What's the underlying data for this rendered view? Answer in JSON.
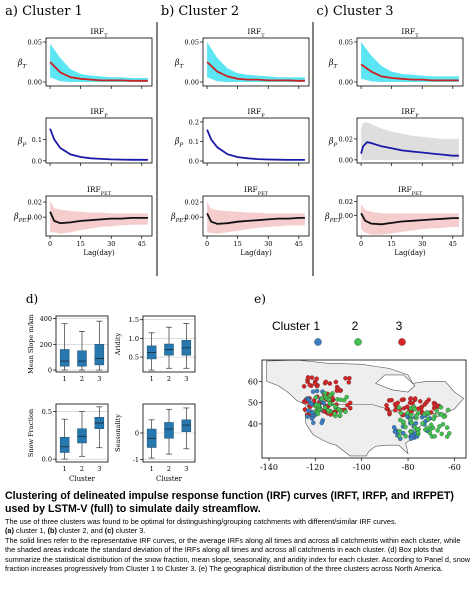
{
  "figure": {
    "panel_labels": {
      "a": "a) Cluster 1",
      "b": "b) Cluster 2",
      "c": "c) Cluster 3",
      "d": "d)",
      "e": "e)"
    },
    "irf_titles": [
      "IRF",
      "IRF",
      "IRF"
    ],
    "irf_subs": [
      "T",
      "P",
      "PET"
    ],
    "beta_symbol": "β",
    "beta_subs": [
      "T",
      "P",
      "PET"
    ],
    "irf_xlabel": "Lag(day)"
  },
  "chart_data": [
    {
      "type": "line",
      "panel": "a",
      "title": "IRF_T",
      "ylabel": "β_T",
      "x": [
        0,
        5,
        10,
        15,
        20,
        25,
        30,
        35,
        40,
        45,
        48
      ],
      "mean": [
        0.025,
        0.012,
        0.006,
        0.004,
        0.003,
        0.002,
        0.002,
        0.002,
        0.0015,
        0.0015,
        0.0015
      ],
      "band_upper": [
        0.048,
        0.03,
        0.016,
        0.01,
        0.008,
        0.007,
        0.006,
        0.006,
        0.005,
        0.005,
        0.005
      ],
      "band_lower": [
        0.006,
        0.001,
        0,
        0,
        0,
        0,
        0,
        0,
        0,
        0,
        0
      ],
      "yticks": [
        0.0,
        0.05
      ],
      "ylim": [
        -0.005,
        0.055
      ],
      "xticks": [
        0,
        15,
        30,
        45
      ],
      "color": "#cc2222",
      "band_color": "#40e0f0"
    },
    {
      "type": "line",
      "panel": "a",
      "title": "IRF_P",
      "ylabel": "β_P",
      "x": [
        0,
        2,
        5,
        10,
        15,
        20,
        25,
        30,
        35,
        40,
        45,
        48
      ],
      "mean": [
        0.15,
        0.1,
        0.06,
        0.03,
        0.018,
        0.012,
        0.009,
        0.007,
        0.006,
        0.005,
        0.005,
        0.005
      ],
      "yticks": [
        0.0,
        0.1
      ],
      "ylim": [
        -0.01,
        0.2
      ],
      "xticks": [
        0,
        15,
        30,
        45
      ],
      "color": "#1a1aaa"
    },
    {
      "type": "line",
      "panel": "a",
      "title": "IRF_PET",
      "ylabel": "β_PET",
      "x": [
        0,
        2,
        5,
        10,
        15,
        20,
        25,
        30,
        35,
        40,
        45,
        48
      ],
      "mean": [
        0.007,
        -0.005,
        -0.008,
        -0.007,
        -0.005,
        -0.004,
        -0.003,
        -0.002,
        -0.002,
        -0.001,
        -0.001,
        -0.001
      ],
      "band_upper": [
        0.022,
        0.012,
        0.01,
        0.008,
        0.007,
        0.006,
        0.006,
        0.005,
        0.005,
        0.005,
        0.005,
        0.005
      ],
      "band_lower": [
        -0.02,
        -0.02,
        -0.022,
        -0.02,
        -0.017,
        -0.015,
        -0.013,
        -0.012,
        -0.011,
        -0.01,
        -0.01,
        -0.01
      ],
      "yticks": [
        0.0,
        0.02
      ],
      "ylim": [
        -0.025,
        0.028
      ],
      "xticks": [
        0,
        15,
        30,
        45
      ],
      "color": "#111111",
      "band_color": "#f4c4c4"
    },
    {
      "type": "line",
      "panel": "b",
      "title": "IRF_T",
      "ylabel": "β_T",
      "x": [
        0,
        5,
        10,
        15,
        20,
        25,
        30,
        35,
        40,
        45,
        48
      ],
      "mean": [
        0.025,
        0.013,
        0.007,
        0.004,
        0.003,
        0.003,
        0.002,
        0.002,
        0.002,
        0.0015,
        0.0015
      ],
      "band_upper": [
        0.05,
        0.03,
        0.017,
        0.011,
        0.009,
        0.008,
        0.007,
        0.006,
        0.006,
        0.006,
        0.006
      ],
      "band_lower": [
        0.006,
        0.001,
        0,
        0,
        0,
        0,
        0,
        0,
        0,
        0,
        0
      ],
      "yticks": [
        0.0,
        0.05
      ],
      "ylim": [
        -0.005,
        0.055
      ],
      "xticks": [
        0,
        15,
        30,
        45
      ],
      "color": "#cc2222",
      "band_color": "#40e0f0"
    },
    {
      "type": "line",
      "panel": "b",
      "title": "IRF_P",
      "ylabel": "β_P",
      "x": [
        0,
        2,
        5,
        10,
        15,
        20,
        25,
        30,
        35,
        40,
        45,
        48
      ],
      "mean": [
        0.16,
        0.11,
        0.07,
        0.035,
        0.02,
        0.014,
        0.01,
        0.008,
        0.007,
        0.006,
        0.006,
        0.006
      ],
      "yticks": [
        0.0,
        0.1,
        0.2
      ],
      "ylim": [
        -0.01,
        0.22
      ],
      "xticks": [
        0,
        15,
        30,
        45
      ],
      "color": "#1a1aaa"
    },
    {
      "type": "line",
      "panel": "b",
      "title": "IRF_PET",
      "ylabel": "β_PET",
      "x": [
        0,
        2,
        5,
        10,
        15,
        20,
        25,
        30,
        35,
        40,
        45,
        48
      ],
      "mean": [
        0.005,
        -0.006,
        -0.009,
        -0.008,
        -0.006,
        -0.005,
        -0.004,
        -0.003,
        -0.002,
        -0.002,
        -0.001,
        -0.001
      ],
      "band_upper": [
        0.02,
        0.011,
        0.009,
        0.008,
        0.007,
        0.006,
        0.006,
        0.005,
        0.005,
        0.005,
        0.005,
        0.005
      ],
      "band_lower": [
        -0.02,
        -0.021,
        -0.022,
        -0.02,
        -0.018,
        -0.016,
        -0.014,
        -0.013,
        -0.012,
        -0.011,
        -0.011,
        -0.011
      ],
      "yticks": [
        0.0,
        0.02
      ],
      "ylim": [
        -0.025,
        0.028
      ],
      "xticks": [
        0,
        15,
        30,
        45
      ],
      "color": "#111111",
      "band_color": "#f4c4c4"
    },
    {
      "type": "line",
      "panel": "c",
      "title": "IRF_T",
      "ylabel": "β_T",
      "x": [
        0,
        5,
        10,
        15,
        20,
        25,
        30,
        35,
        40,
        45,
        48
      ],
      "mean": [
        0.022,
        0.013,
        0.007,
        0.005,
        0.004,
        0.003,
        0.003,
        0.002,
        0.002,
        0.002,
        0.002
      ],
      "band_upper": [
        0.05,
        0.033,
        0.02,
        0.013,
        0.01,
        0.009,
        0.008,
        0.007,
        0.007,
        0.007,
        0.007
      ],
      "band_lower": [
        0.004,
        0.001,
        0,
        0,
        0,
        0,
        0,
        0,
        0,
        0,
        0
      ],
      "yticks": [
        0.0,
        0.05
      ],
      "ylim": [
        -0.005,
        0.055
      ],
      "xticks": [
        0,
        15,
        30,
        45
      ],
      "color": "#cc2222",
      "band_color": "#40e0f0"
    },
    {
      "type": "line",
      "panel": "c",
      "title": "IRF_P",
      "ylabel": "β_P",
      "x": [
        0,
        1,
        3,
        5,
        10,
        15,
        20,
        25,
        30,
        35,
        40,
        45,
        48
      ],
      "mean": [
        0.006,
        0.013,
        0.017,
        0.016,
        0.013,
        0.011,
        0.009,
        0.008,
        0.007,
        0.006,
        0.005,
        0.004,
        0.004
      ],
      "band_upper": [
        0.03,
        0.035,
        0.036,
        0.034,
        0.03,
        0.027,
        0.025,
        0.023,
        0.022,
        0.021,
        0.02,
        0.02,
        0.02
      ],
      "band_lower": [
        0,
        0,
        0,
        0,
        0,
        0,
        0,
        0,
        0,
        0,
        0,
        0,
        0
      ],
      "yticks": [
        0.0,
        0.02
      ],
      "ylim": [
        -0.003,
        0.04
      ],
      "xticks": [
        0,
        15,
        30,
        45
      ],
      "color": "#1a1aaa",
      "band_color": "#d8d8d8"
    },
    {
      "type": "line",
      "panel": "c",
      "title": "IRF_PET",
      "ylabel": "β_PET",
      "x": [
        0,
        2,
        5,
        10,
        15,
        20,
        25,
        30,
        35,
        40,
        45,
        48
      ],
      "mean": [
        0.003,
        -0.008,
        -0.012,
        -0.013,
        -0.011,
        -0.009,
        -0.008,
        -0.007,
        -0.006,
        -0.005,
        -0.004,
        -0.004
      ],
      "band_upper": [
        0.016,
        0.008,
        0.005,
        0.003,
        0.003,
        0.003,
        0.003,
        0.003,
        0.003,
        0.003,
        0.003,
        0.003
      ],
      "band_lower": [
        -0.02,
        -0.025,
        -0.028,
        -0.028,
        -0.026,
        -0.024,
        -0.022,
        -0.02,
        -0.019,
        -0.018,
        -0.017,
        -0.017
      ],
      "yticks": [
        0.0,
        0.02
      ],
      "ylim": [
        -0.03,
        0.028
      ],
      "xticks": [
        0,
        15,
        30,
        45
      ],
      "color": "#111111",
      "band_color": "#f4c4c4"
    },
    {
      "type": "box",
      "panel": "d",
      "ylabel": "Mean Slope m/km",
      "xlabel": "",
      "categories": [
        "1",
        "2",
        "3"
      ],
      "boxes": [
        {
          "whislo": 0,
          "q1": 30,
          "med": 70,
          "q3": 160,
          "whishi": 360
        },
        {
          "whislo": 0,
          "q1": 30,
          "med": 70,
          "q3": 150,
          "whishi": 300
        },
        {
          "whislo": 0,
          "q1": 40,
          "med": 90,
          "q3": 200,
          "whishi": 380
        }
      ],
      "yticks": [
        0,
        200,
        400
      ],
      "ylim": [
        -15,
        420
      ],
      "color": "#2878b0"
    },
    {
      "type": "box",
      "panel": "d",
      "ylabel": "Aridity",
      "xlabel": "",
      "categories": [
        "1",
        "2",
        "3"
      ],
      "boxes": [
        {
          "whislo": 0.15,
          "q1": 0.45,
          "med": 0.62,
          "q3": 0.8,
          "whishi": 1.15
        },
        {
          "whislo": 0.2,
          "q1": 0.55,
          "med": 0.7,
          "q3": 0.85,
          "whishi": 1.3
        },
        {
          "whislo": 0.2,
          "q1": 0.55,
          "med": 0.75,
          "q3": 0.95,
          "whishi": 1.4
        }
      ],
      "yticks": [
        0.5,
        1.0,
        1.5
      ],
      "ylim": [
        0.1,
        1.6
      ],
      "color": "#2878b0"
    },
    {
      "type": "box",
      "panel": "d",
      "ylabel": "Snow Fraction",
      "xlabel": "Cluster",
      "categories": [
        "1",
        "2",
        "3"
      ],
      "boxes": [
        {
          "whislo": 0,
          "q1": 0.07,
          "med": 0.13,
          "q3": 0.23,
          "whishi": 0.42
        },
        {
          "whislo": 0.03,
          "q1": 0.17,
          "med": 0.24,
          "q3": 0.32,
          "whishi": 0.5
        },
        {
          "whislo": 0.12,
          "q1": 0.32,
          "med": 0.38,
          "q3": 0.44,
          "whishi": 0.55
        }
      ],
      "yticks": [
        0.0,
        0.5
      ],
      "ylim": [
        -0.03,
        0.58
      ],
      "color": "#2878b0"
    },
    {
      "type": "box",
      "panel": "d",
      "ylabel": "Seasonality",
      "xlabel": "Cluster",
      "categories": [
        "1",
        "2",
        "3"
      ],
      "boxes": [
        {
          "whislo": -0.95,
          "q1": -0.55,
          "med": -0.2,
          "q3": 0.15,
          "whishi": 0.5
        },
        {
          "whislo": -0.8,
          "q1": -0.2,
          "med": 0.15,
          "q3": 0.4,
          "whishi": 0.9
        },
        {
          "whislo": -0.6,
          "q1": 0.05,
          "med": 0.3,
          "q3": 0.5,
          "whishi": 0.95
        }
      ],
      "yticks": [
        -1,
        0
      ],
      "ylim": [
        -1.1,
        1.1
      ],
      "color": "#2878b0"
    },
    {
      "type": "scatter-map",
      "panel": "e",
      "legend": [
        "Cluster 1",
        "2",
        "3"
      ],
      "legend_colors": [
        "#3a7fc4",
        "#44c050",
        "#d42626"
      ],
      "xticks": [
        -140,
        -120,
        -100,
        -80,
        -60
      ],
      "yticks": [
        40,
        50,
        60
      ],
      "xlim": [
        -143,
        -55
      ],
      "ylim": [
        24,
        70
      ]
    }
  ],
  "caption": {
    "title": "Clustering of delineated impulse response function (IRF) curves (IRFT, IRFP, and IRFPET) used by LSTM-V (full) to simulate daily streamflow.",
    "line1": "The use of three clusters was found to be optimal for distinguishing/grouping catchments with different/similar IRF curves.",
    "a_label": "(a)",
    "a_text": " cluster 1, ",
    "b_label": "(b)",
    "b_text": " cluster 2, and ",
    "c_label": "(c)",
    "c_text": " cluster 3.",
    "body": "The solid lines refer to the representative IRF curves, or the average IRFs along all times and across all catchments within each cluster, while the shaded areas indicate the standard deviation of the IRFs along all times and across all catchments in each cluster. (d) Box plots that summarize the statistical distribution of the snow fraction, mean slope, seasonality, and aridity index for each cluster. According to Panel d, snow fraction increases progressively from Cluster 1 to Cluster 3. (e) The geographical distribution of the three clusters across North America."
  }
}
